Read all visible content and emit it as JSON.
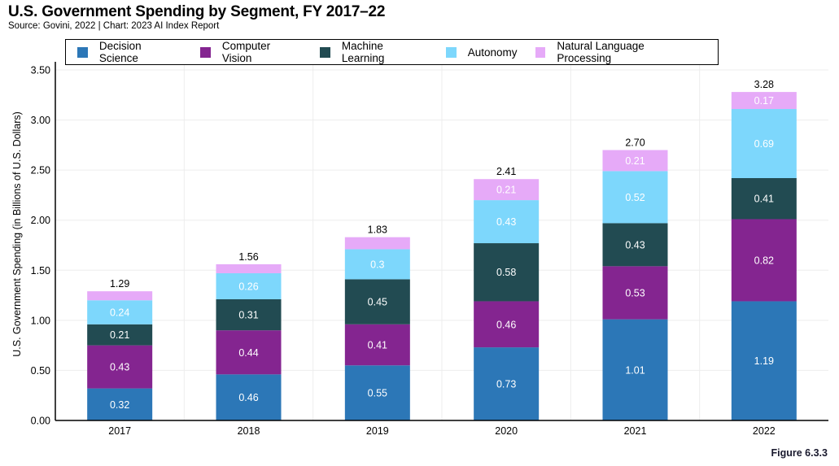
{
  "title": "U.S. Government Spending by Segment, FY 2017–22",
  "subtitle": "Source: Govini, 2022 | Chart: 2023 AI Index Report",
  "figure_label": "Figure 6.3.3",
  "chart_data": {
    "type": "bar",
    "stacked": true,
    "title": "U.S. Government Spending by Segment, FY 2017–22",
    "xlabel": "",
    "ylabel": "U.S. Government Spending (in Billions of U.S. Dollars)",
    "ylim": [
      0,
      3.5
    ],
    "yticks": [
      "0.00",
      "0.50",
      "1.00",
      "1.50",
      "2.00",
      "2.50",
      "3.00",
      "3.50"
    ],
    "ytick_values": [
      0,
      0.5,
      1.0,
      1.5,
      2.0,
      2.5,
      3.0,
      3.5
    ],
    "grid": true,
    "legend_position": "top",
    "categories": [
      "2017",
      "2018",
      "2019",
      "2020",
      "2021",
      "2022"
    ],
    "series": [
      {
        "name": "Decision Science",
        "color": "#2c77b7",
        "label_color": "#ffffff",
        "values": [
          0.32,
          0.46,
          0.55,
          0.73,
          1.01,
          1.19
        ],
        "labels": [
          "0.32",
          "0.46",
          "0.55",
          "0.73",
          "1.01",
          "1.19"
        ]
      },
      {
        "name": "Computer Vision",
        "color": "#842590",
        "label_color": "#ffffff",
        "values": [
          0.43,
          0.44,
          0.41,
          0.46,
          0.53,
          0.82
        ],
        "labels": [
          "0.43",
          "0.44",
          "0.41",
          "0.46",
          "0.53",
          "0.82"
        ]
      },
      {
        "name": "Machine Learning",
        "color": "#224b52",
        "label_color": "#ffffff",
        "values": [
          0.21,
          0.31,
          0.45,
          0.58,
          0.43,
          0.41
        ],
        "labels": [
          "0.21",
          "0.31",
          "0.45",
          "0.58",
          "0.43",
          "0.41"
        ]
      },
      {
        "name": "Autonomy",
        "color": "#7dd7fc",
        "label_color": "#ffffff",
        "values": [
          0.24,
          0.26,
          0.3,
          0.43,
          0.52,
          0.69
        ],
        "labels": [
          "0.24",
          "0.26",
          "0.3",
          "0.43",
          "0.52",
          "0.69"
        ]
      },
      {
        "name": "Natural Language Processing",
        "color": "#e6aaf8",
        "label_color": "#ffffff",
        "values": [
          0.09,
          0.09,
          0.12,
          0.21,
          0.21,
          0.17
        ],
        "labels": [
          "",
          "",
          "",
          "0.21",
          "0.21",
          "0.17"
        ]
      }
    ],
    "totals": [
      1.29,
      1.56,
      1.83,
      2.41,
      2.7,
      3.28
    ],
    "total_labels": [
      "1.29",
      "1.56",
      "1.83",
      "2.41",
      "2.70",
      "3.28"
    ]
  }
}
